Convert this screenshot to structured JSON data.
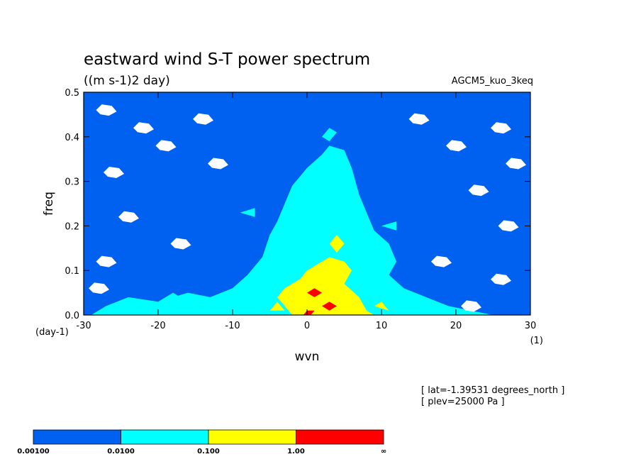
{
  "header": {
    "title": "eastward wind S-T power spectrum",
    "units": "((m s-1)2 day)",
    "model": "AGCM5_kuo_3keq"
  },
  "info": {
    "lat": "[ lat=-1.39531 degrees_north ]",
    "plev": "[ plev=25000 Pa ]"
  },
  "axes": {
    "xlabel": "wvn",
    "ylabel": "freq",
    "xunit": "(1)",
    "yunit": "(day-1)",
    "xticks": [
      "-30",
      "-20",
      "-10",
      "0",
      "10",
      "20",
      "30"
    ],
    "yticks": [
      "0.0",
      "0.1",
      "0.2",
      "0.3",
      "0.4",
      "0.5"
    ]
  },
  "colorbar": {
    "labels": [
      "0.00100",
      "0.0100",
      "0.100",
      "1.00",
      "∞"
    ],
    "colors": [
      "#0060f0",
      "#00ffff",
      "#ffff00",
      "#ff0000"
    ]
  },
  "chart_data": {
    "type": "heatmap",
    "title": "eastward wind S-T power spectrum",
    "subtitle": "((m s-1)2 day)",
    "xlabel": "wvn",
    "ylabel": "freq",
    "xlim": [
      -30,
      30
    ],
    "ylim": [
      0,
      0.5
    ],
    "x_ticks": [
      -30,
      -20,
      -10,
      0,
      10,
      20,
      30
    ],
    "y_ticks": [
      0.0,
      0.1,
      0.2,
      0.3,
      0.4,
      0.5
    ],
    "contour_levels": [
      0.001,
      0.01,
      0.1,
      1.0
    ],
    "level_colors": [
      "#0060f0",
      "#00ffff",
      "#ffff00",
      "#ff0000"
    ],
    "regions": [
      {
        "level": 0.001,
        "description_free": true,
        "polygons": [
          [
            [
              -30,
              0
            ],
            [
              30,
              0
            ],
            [
              30,
              0.5
            ],
            [
              -30,
              0.5
            ]
          ]
        ]
      },
      {
        "level": 0.01,
        "polygons": [
          [
            [
              -29,
              0
            ],
            [
              -27,
              0.02
            ],
            [
              -24,
              0.04
            ],
            [
              -20,
              0.03
            ],
            [
              -16,
              0.05
            ],
            [
              -13,
              0.04
            ],
            [
              -10,
              0.06
            ],
            [
              -8,
              0.09
            ],
            [
              -6,
              0.13
            ],
            [
              -5,
              0.18
            ],
            [
              -4,
              0.21
            ],
            [
              -3,
              0.25
            ],
            [
              -2,
              0.29
            ],
            [
              0,
              0.33
            ],
            [
              2,
              0.36
            ],
            [
              3,
              0.38
            ],
            [
              5,
              0.37
            ],
            [
              6,
              0.33
            ],
            [
              7,
              0.27
            ],
            [
              8,
              0.23
            ],
            [
              9,
              0.19
            ],
            [
              11,
              0.16
            ],
            [
              12,
              0.12
            ],
            [
              11,
              0.09
            ],
            [
              13,
              0.06
            ],
            [
              16,
              0.04
            ],
            [
              19,
              0.02
            ],
            [
              22,
              0.01
            ],
            [
              25,
              0
            ]
          ],
          [
            [
              2,
              0.4
            ],
            [
              3,
              0.42
            ],
            [
              4,
              0.41
            ],
            [
              3,
              0.39
            ]
          ],
          [
            [
              -9,
              0.23
            ],
            [
              -7,
              0.24
            ],
            [
              -7,
              0.22
            ]
          ],
          [
            [
              10,
              0.2
            ],
            [
              12,
              0.21
            ],
            [
              12,
              0.19
            ]
          ],
          [
            [
              -20,
              0.03
            ],
            [
              -18,
              0.05
            ],
            [
              -16,
              0.03
            ]
          ]
        ]
      },
      {
        "level": 0.1,
        "polygons": [
          [
            [
              -2,
              0
            ],
            [
              -3,
              0.02
            ],
            [
              -4,
              0.04
            ],
            [
              -3,
              0.06
            ],
            [
              -1,
              0.08
            ],
            [
              0,
              0.1
            ],
            [
              2,
              0.12
            ],
            [
              3,
              0.13
            ],
            [
              5,
              0.12
            ],
            [
              6,
              0.1
            ],
            [
              5,
              0.07
            ],
            [
              7,
              0.04
            ],
            [
              8,
              0.01
            ],
            [
              9,
              0
            ]
          ],
          [
            [
              3,
              0.16
            ],
            [
              4,
              0.18
            ],
            [
              5,
              0.16
            ],
            [
              4,
              0.14
            ]
          ],
          [
            [
              -5,
              0.01
            ],
            [
              -4,
              0.03
            ],
            [
              -3,
              0.01
            ]
          ],
          [
            [
              9,
              0.02
            ],
            [
              10,
              0.03
            ],
            [
              11,
              0.01
            ]
          ]
        ]
      },
      {
        "level": 1.0,
        "polygons": [
          [
            [
              0,
              0.05
            ],
            [
              1,
              0.06
            ],
            [
              2,
              0.05
            ],
            [
              1,
              0.04
            ]
          ],
          [
            [
              2,
              0.02
            ],
            [
              3,
              0.03
            ],
            [
              4,
              0.02
            ],
            [
              3,
              0.01
            ]
          ],
          [
            [
              -0.5,
              0
            ],
            [
              0,
              0.01
            ],
            [
              1,
              0.01
            ],
            [
              0.5,
              0
            ]
          ]
        ]
      }
    ],
    "colorbar_levels": [
      "0.00100",
      "0.0100",
      "0.100",
      "1.00",
      "∞"
    ]
  }
}
